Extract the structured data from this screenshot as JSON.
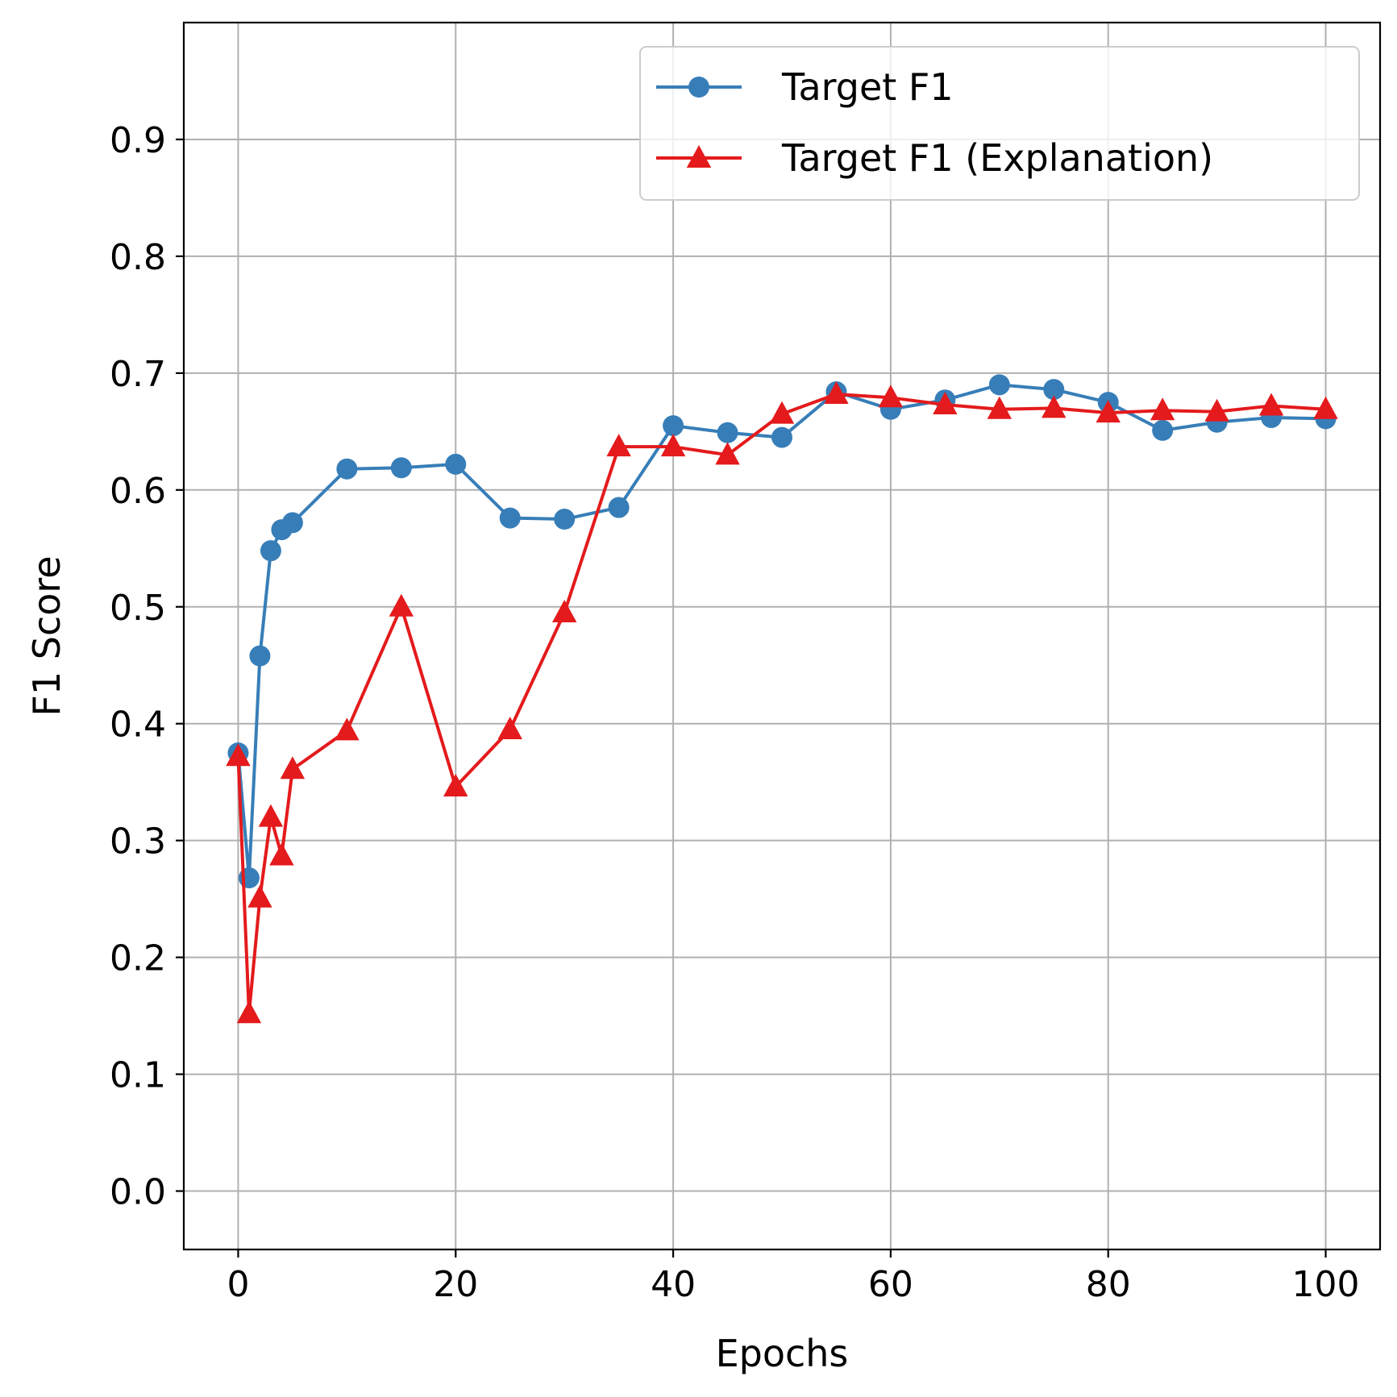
{
  "chart_data": {
    "type": "line",
    "xlabel": "Epochs",
    "ylabel": "F1 Score",
    "xlim": [
      -5,
      105
    ],
    "ylim": [
      -0.05,
      1.0
    ],
    "x_ticks": [
      0,
      20,
      40,
      60,
      80,
      100
    ],
    "y_ticks": [
      0.0,
      0.1,
      0.2,
      0.3,
      0.4,
      0.5,
      0.6,
      0.7,
      0.8,
      0.9
    ],
    "x_tick_labels": [
      "0",
      "20",
      "40",
      "60",
      "80",
      "100"
    ],
    "y_tick_labels": [
      "0.0",
      "0.1",
      "0.2",
      "0.3",
      "0.4",
      "0.5",
      "0.6",
      "0.7",
      "0.8",
      "0.9"
    ],
    "grid": true,
    "legend_position": "top-right",
    "series": [
      {
        "name": "Target F1",
        "color": "#377eb8",
        "marker": "circle",
        "x": [
          0,
          1,
          2,
          3,
          4,
          5,
          10,
          15,
          20,
          25,
          30,
          35,
          40,
          45,
          50,
          55,
          60,
          65,
          70,
          75,
          80,
          85,
          90,
          95,
          100
        ],
        "y": [
          0.375,
          0.268,
          0.458,
          0.548,
          0.566,
          0.572,
          0.618,
          0.619,
          0.622,
          0.576,
          0.575,
          0.585,
          0.655,
          0.649,
          0.645,
          0.684,
          0.669,
          0.677,
          0.69,
          0.686,
          0.675,
          0.651,
          0.658,
          0.662,
          0.661
        ]
      },
      {
        "name": "Target F1 (Explanation)",
        "color": "#e41a1c",
        "marker": "triangle",
        "x": [
          0,
          1,
          2,
          3,
          4,
          5,
          10,
          15,
          20,
          25,
          30,
          35,
          40,
          45,
          50,
          55,
          60,
          65,
          70,
          75,
          80,
          85,
          90,
          95,
          100
        ],
        "y": [
          0.372,
          0.152,
          0.251,
          0.32,
          0.287,
          0.361,
          0.394,
          0.5,
          0.346,
          0.395,
          0.495,
          0.637,
          0.637,
          0.63,
          0.665,
          0.682,
          0.679,
          0.673,
          0.669,
          0.67,
          0.666,
          0.668,
          0.667,
          0.672,
          0.669
        ]
      }
    ]
  }
}
